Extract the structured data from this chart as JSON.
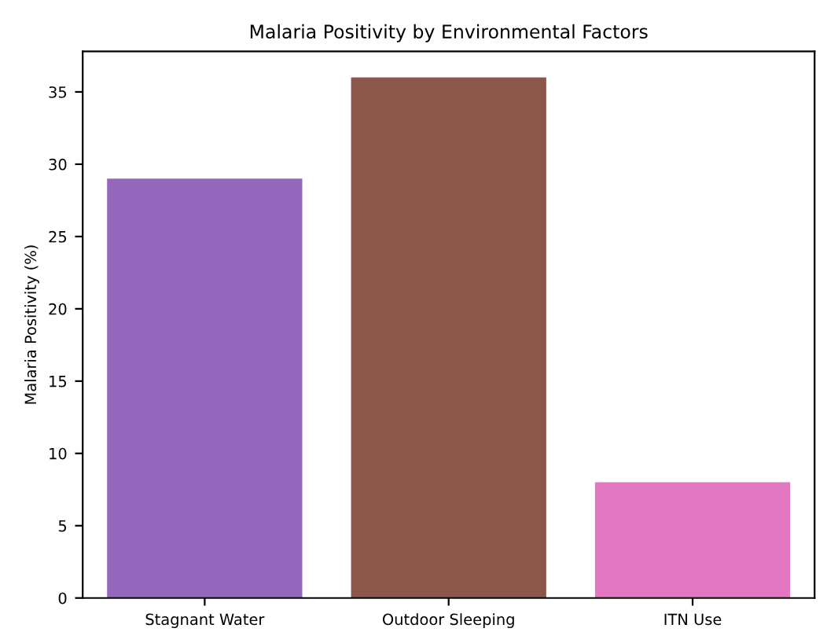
{
  "chart_data": {
    "type": "bar",
    "title": "Malaria Positivity by Environmental Factors",
    "ylabel": "Malaria Positivity (%)",
    "categories": [
      "Stagnant Water",
      "Outdoor Sleeping",
      "ITN Use"
    ],
    "values": [
      29,
      36,
      8
    ],
    "colors": [
      "#9467bd",
      "#8c564b",
      "#e377c2"
    ],
    "ylim": [
      0,
      37.8
    ],
    "yticks": [
      0,
      5,
      10,
      15,
      20,
      25,
      30,
      35
    ],
    "grid": false
  }
}
